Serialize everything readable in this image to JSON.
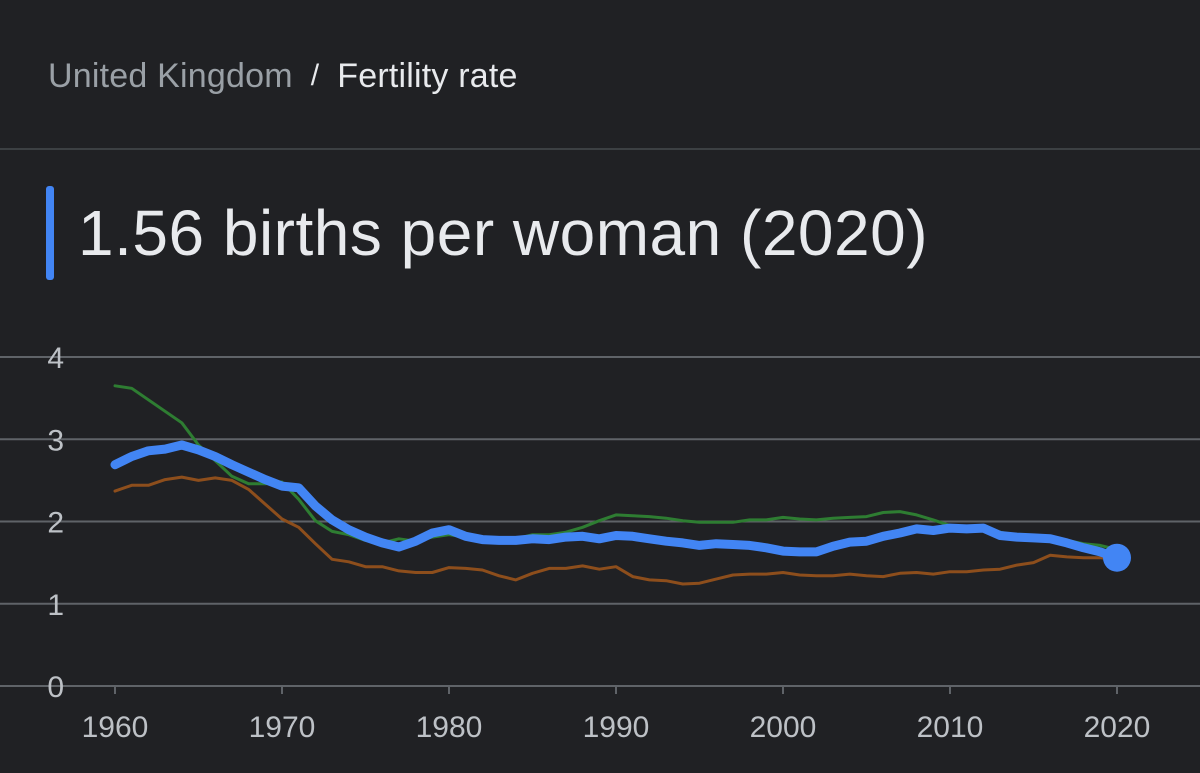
{
  "breadcrumb": {
    "parent": "United Kingdom",
    "separator": "/",
    "current": "Fertility rate"
  },
  "headline": "1.56 births per woman (2020)",
  "colors": {
    "background": "#202124",
    "accent": "#4285f4",
    "gridline": "#5f6368",
    "tick_text": "#bdc1c6",
    "comparison_green": "#2e7d32",
    "comparison_brown": "#8d4e1c"
  },
  "chart_data": {
    "type": "line",
    "title": "",
    "xlabel": "",
    "ylabel": "",
    "xlim": [
      1958,
      2022
    ],
    "ylim": [
      0,
      4
    ],
    "x_ticks": [
      1960,
      1970,
      1980,
      1990,
      2000,
      2010,
      2020
    ],
    "y_ticks": [
      0,
      1,
      2,
      3,
      4
    ],
    "grid": true,
    "legend": "none",
    "series": [
      {
        "color": "#2e7d32",
        "x": [
          1960,
          1961,
          1962,
          1963,
          1964,
          1965,
          1966,
          1967,
          1968,
          1969,
          1970,
          1971,
          1972,
          1973,
          1974,
          1975,
          1976,
          1977,
          1978,
          1979,
          1980,
          1981,
          1982,
          1983,
          1984,
          1985,
          1986,
          1987,
          1988,
          1989,
          1990,
          1991,
          1992,
          1993,
          1994,
          1995,
          1996,
          1997,
          1998,
          1999,
          2000,
          2001,
          2002,
          2003,
          2004,
          2005,
          2006,
          2007,
          2008,
          2009,
          2010,
          2011,
          2012,
          2013,
          2014,
          2015,
          2016,
          2017,
          2018,
          2019,
          2020
        ],
        "values": [
          3.65,
          3.62,
          3.48,
          3.34,
          3.2,
          2.93,
          2.74,
          2.55,
          2.46,
          2.46,
          2.48,
          2.27,
          2.01,
          1.88,
          1.84,
          1.77,
          1.74,
          1.79,
          1.76,
          1.81,
          1.84,
          1.81,
          1.8,
          1.79,
          1.79,
          1.84,
          1.84,
          1.87,
          1.93,
          2.01,
          2.08,
          2.07,
          2.06,
          2.04,
          2.01,
          1.99,
          1.99,
          1.99,
          2.02,
          2.02,
          2.05,
          2.03,
          2.02,
          2.04,
          2.05,
          2.06,
          2.11,
          2.12,
          2.08,
          2.02,
          1.95,
          1.92,
          1.91,
          1.87,
          1.83,
          1.79,
          1.8,
          1.77,
          1.73,
          1.71,
          1.66
        ]
      },
      {
        "color": "#8d4e1c",
        "x": [
          1960,
          1961,
          1962,
          1963,
          1964,
          1965,
          1966,
          1967,
          1968,
          1969,
          1970,
          1971,
          1972,
          1973,
          1974,
          1975,
          1976,
          1977,
          1978,
          1979,
          1980,
          1981,
          1982,
          1983,
          1984,
          1985,
          1986,
          1987,
          1988,
          1989,
          1990,
          1991,
          1992,
          1993,
          1994,
          1995,
          1996,
          1997,
          1998,
          1999,
          2000,
          2001,
          2002,
          2003,
          2004,
          2005,
          2006,
          2007,
          2008,
          2009,
          2010,
          2011,
          2012,
          2013,
          2014,
          2015,
          2016,
          2017,
          2018,
          2019,
          2020
        ],
        "values": [
          2.37,
          2.44,
          2.44,
          2.51,
          2.54,
          2.5,
          2.53,
          2.5,
          2.39,
          2.21,
          2.03,
          1.93,
          1.73,
          1.54,
          1.51,
          1.45,
          1.45,
          1.4,
          1.38,
          1.38,
          1.44,
          1.43,
          1.41,
          1.34,
          1.29,
          1.37,
          1.43,
          1.43,
          1.46,
          1.42,
          1.45,
          1.33,
          1.29,
          1.28,
          1.24,
          1.25,
          1.3,
          1.35,
          1.36,
          1.36,
          1.38,
          1.35,
          1.34,
          1.34,
          1.36,
          1.34,
          1.33,
          1.37,
          1.38,
          1.36,
          1.39,
          1.39,
          1.41,
          1.42,
          1.47,
          1.5,
          1.59,
          1.57,
          1.56,
          1.56,
          1.53
        ]
      },
      {
        "color": "#4285f4",
        "x": [
          1960,
          1961,
          1962,
          1963,
          1964,
          1965,
          1966,
          1967,
          1968,
          1969,
          1970,
          1971,
          1972,
          1973,
          1974,
          1975,
          1976,
          1977,
          1978,
          1979,
          1980,
          1981,
          1982,
          1983,
          1984,
          1985,
          1986,
          1987,
          1988,
          1989,
          1990,
          1991,
          1992,
          1993,
          1994,
          1995,
          1996,
          1997,
          1998,
          1999,
          2000,
          2001,
          2002,
          2003,
          2004,
          2005,
          2006,
          2007,
          2008,
          2009,
          2010,
          2011,
          2012,
          2013,
          2014,
          2015,
          2016,
          2017,
          2018,
          2019,
          2020
        ],
        "values": [
          2.69,
          2.79,
          2.86,
          2.88,
          2.93,
          2.87,
          2.79,
          2.69,
          2.6,
          2.51,
          2.43,
          2.41,
          2.19,
          2.02,
          1.9,
          1.81,
          1.74,
          1.69,
          1.76,
          1.86,
          1.9,
          1.82,
          1.78,
          1.77,
          1.77,
          1.79,
          1.78,
          1.81,
          1.82,
          1.79,
          1.83,
          1.82,
          1.79,
          1.76,
          1.74,
          1.71,
          1.73,
          1.72,
          1.71,
          1.68,
          1.64,
          1.63,
          1.63,
          1.7,
          1.75,
          1.76,
          1.82,
          1.86,
          1.91,
          1.89,
          1.92,
          1.91,
          1.92,
          1.83,
          1.81,
          1.8,
          1.79,
          1.74,
          1.68,
          1.63,
          1.56
        ]
      }
    ]
  }
}
